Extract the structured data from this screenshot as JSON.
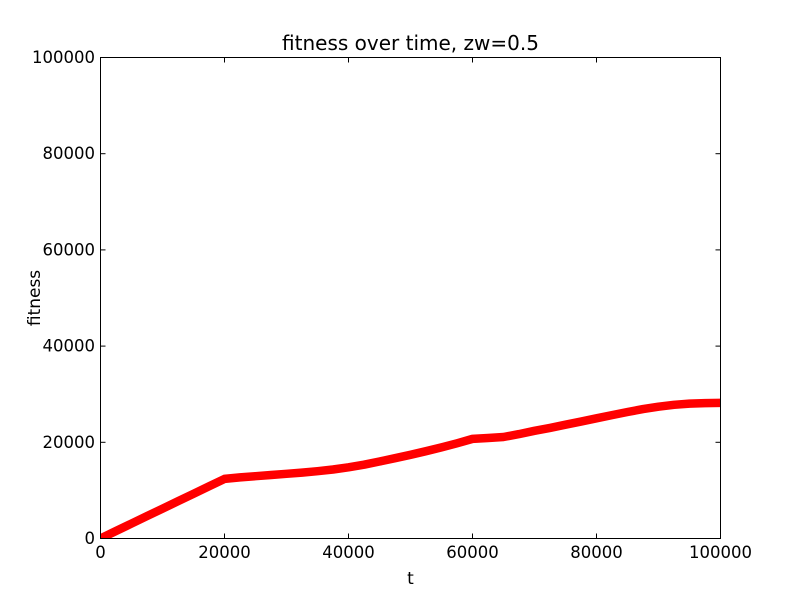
{
  "figure": {
    "background": "#ffffff",
    "text_color": "#000000"
  },
  "chart_data": {
    "type": "line",
    "title": "fitness over time, zw=0.5",
    "xlabel": "t",
    "ylabel": "fitness",
    "xlim": [
      0,
      100000
    ],
    "ylim": [
      0,
      100000
    ],
    "xticks": [
      0,
      20000,
      40000,
      60000,
      80000,
      100000
    ],
    "yticks": [
      0,
      20000,
      40000,
      60000,
      80000,
      100000
    ],
    "grid": false,
    "legend": null,
    "series": [
      {
        "name": "fitness",
        "color": "#ff0000",
        "marker": "x",
        "style": "dense-marker-band",
        "x": [
          0,
          2500,
          5000,
          7500,
          10000,
          12500,
          15000,
          17500,
          20000,
          22500,
          25000,
          27500,
          30000,
          32500,
          35000,
          37500,
          40000,
          42500,
          45000,
          47500,
          50000,
          52500,
          55000,
          57500,
          60000,
          62500,
          65000,
          67500,
          70000,
          72500,
          75000,
          77500,
          80000,
          82500,
          85000,
          87500,
          90000,
          92500,
          95000,
          97500,
          100000
        ],
        "y": [
          0,
          1550,
          3100,
          4650,
          6200,
          7750,
          9300,
          10850,
          12400,
          12700,
          12950,
          13200,
          13450,
          13700,
          14000,
          14350,
          14800,
          15350,
          16000,
          16700,
          17400,
          18150,
          18950,
          19800,
          20700,
          20900,
          21100,
          21700,
          22400,
          23000,
          23650,
          24300,
          25000,
          25650,
          26300,
          26900,
          27400,
          27800,
          28050,
          28150,
          28200
        ]
      }
    ]
  }
}
